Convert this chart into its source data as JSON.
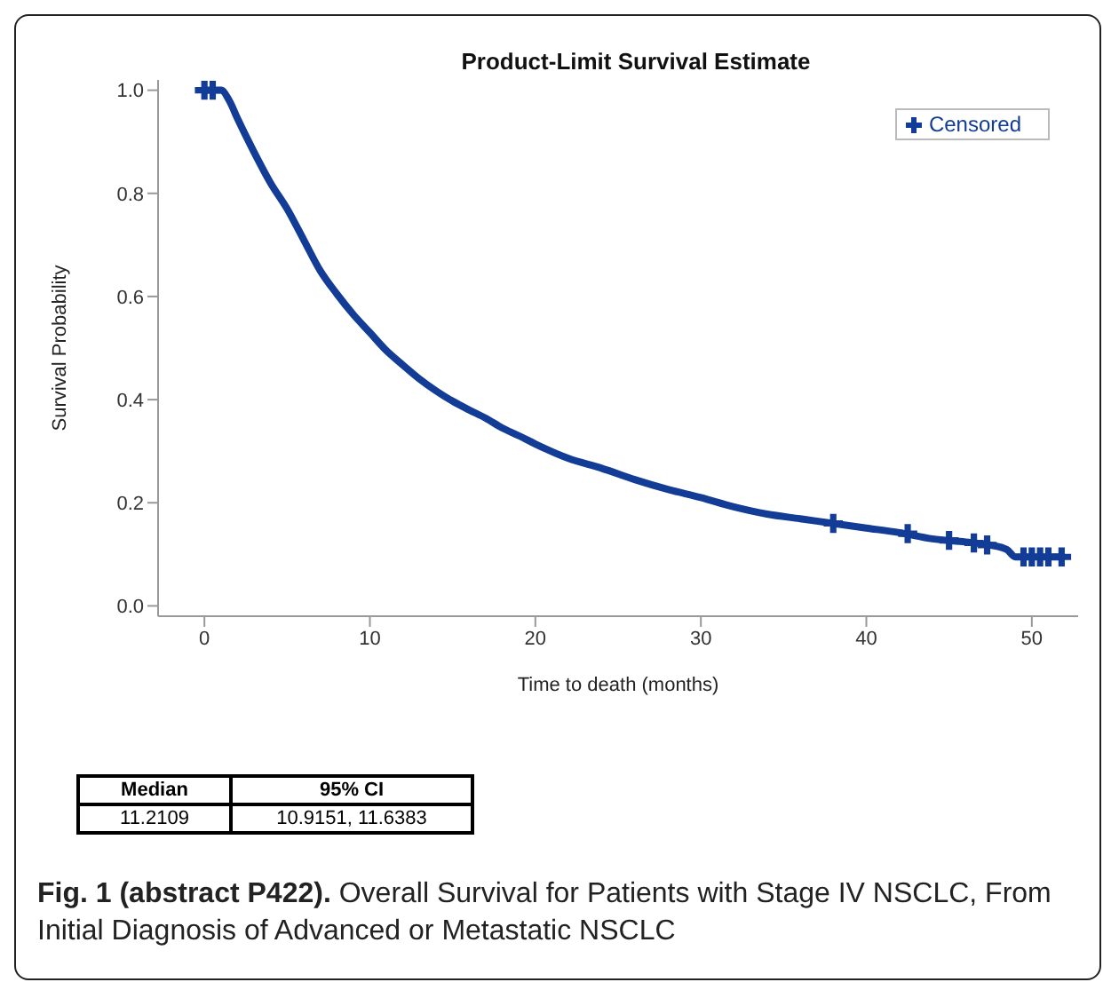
{
  "chart_data": {
    "type": "line",
    "title": "Product-Limit Survival Estimate",
    "xlabel": "Time to death (months)",
    "ylabel": "Survival Probability",
    "xlim": [
      -2.8,
      52.8
    ],
    "xticks": [
      0,
      10,
      20,
      30,
      40,
      50
    ],
    "ylim": [
      -0.02,
      1.02
    ],
    "yticks": [
      {
        "value": 0,
        "label": "0.0"
      },
      {
        "value": 0.2,
        "label": "0.2"
      },
      {
        "value": 0.4,
        "label": "0.4"
      },
      {
        "value": 0.6,
        "label": "0.6"
      },
      {
        "value": 0.8,
        "label": "0.8"
      },
      {
        "value": 1,
        "label": "1.0"
      }
    ],
    "grid": false,
    "legend": "top right",
    "series": [
      {
        "color": "#123c96",
        "marker": "none",
        "x": [
          0,
          1,
          1.5,
          2,
          3,
          4,
          5,
          6,
          7,
          8,
          9,
          10,
          11,
          12,
          13,
          14,
          15,
          16,
          17,
          18,
          19,
          20,
          22,
          24,
          26,
          28,
          30,
          32,
          34,
          36,
          38,
          40,
          42,
          44,
          46,
          47.5,
          48.5,
          49,
          52
        ],
        "values": [
          1,
          1,
          0.98,
          0.945,
          0.88,
          0.82,
          0.77,
          0.71,
          0.65,
          0.605,
          0.565,
          0.53,
          0.495,
          0.467,
          0.44,
          0.417,
          0.397,
          0.38,
          0.364,
          0.345,
          0.33,
          0.314,
          0.286,
          0.267,
          0.245,
          0.226,
          0.21,
          0.192,
          0.178,
          0.169,
          0.16,
          0.151,
          0.142,
          0.13,
          0.124,
          0.118,
          0.109,
          0.095,
          0.095
        ]
      },
      {
        "type": "scatter",
        "name": "Censored",
        "color": "#123c96",
        "marker": "cross",
        "x": [
          0,
          0.5,
          38,
          42.5,
          45,
          46.5,
          47.3,
          49.5,
          50,
          50.5,
          51,
          51.8
        ],
        "values": [
          1,
          1,
          0.16,
          0.14,
          0.127,
          0.122,
          0.118,
          0.095,
          0.095,
          0.095,
          0.095,
          0.095
        ]
      }
    ],
    "annotations": [
      "Median",
      "95% CI",
      "11.2109",
      "10.9151, 11.6383",
      "Fig. 1 (abstract P422).",
      "Overall Survival for Patients with Stage IV NSCLC, From Initial Diagnosis of Advanced or Metastatic NSCLC"
    ]
  }
}
